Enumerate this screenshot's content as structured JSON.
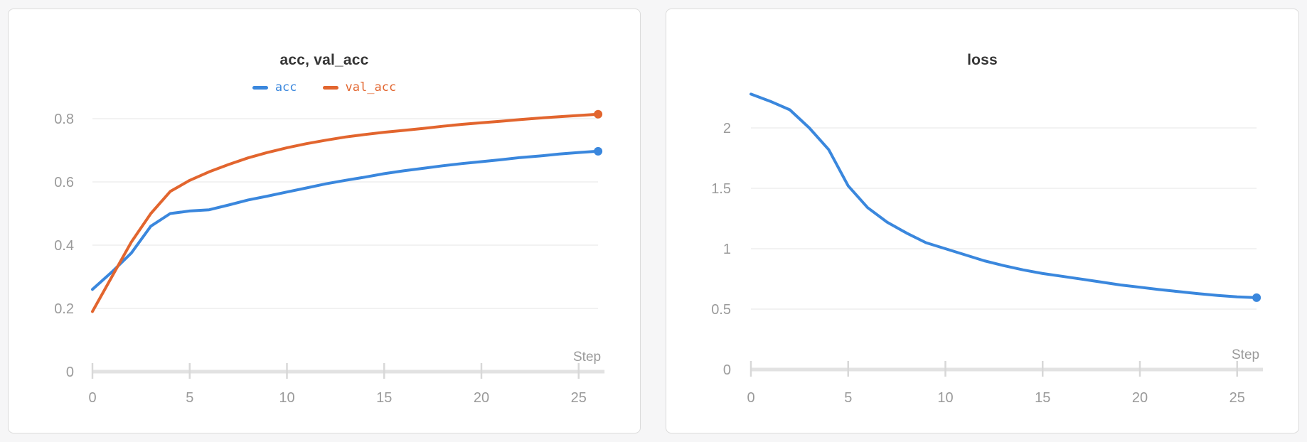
{
  "colors": {
    "page_background": "#f6f6f7",
    "card_background": "#ffffff",
    "card_border": "#dbdbdb",
    "title_text": "#363636",
    "tick_label": "#9a9a9a",
    "gridline": "#ededed",
    "axis_line": "#e2e2e2",
    "tick_mark": "#d8d8d8",
    "series_blue": "#3a87dd",
    "series_orange": "#e2652e"
  },
  "chart_data": [
    {
      "type": "line",
      "title": "acc, val_acc",
      "xlabel": "Step",
      "grid": true,
      "legend_position": "top-center",
      "xlim": [
        0,
        26
      ],
      "ylim": [
        0,
        0.9
      ],
      "x_ticks": [
        0,
        5,
        10,
        15,
        20,
        25
      ],
      "y_ticks": [
        0,
        0.2,
        0.4,
        0.6,
        0.8
      ],
      "x": [
        0,
        1,
        2,
        3,
        4,
        5,
        6,
        7,
        8,
        9,
        10,
        11,
        12,
        13,
        14,
        15,
        16,
        17,
        18,
        19,
        20,
        21,
        22,
        23,
        24,
        25,
        26
      ],
      "series": [
        {
          "name": "acc",
          "color": "#3a87dd",
          "values": [
            0.26,
            0.315,
            0.375,
            0.46,
            0.5,
            0.508,
            0.512,
            0.527,
            0.543,
            0.555,
            0.568,
            0.581,
            0.594,
            0.605,
            0.615,
            0.626,
            0.635,
            0.643,
            0.651,
            0.658,
            0.664,
            0.67,
            0.677,
            0.682,
            0.688,
            0.693,
            0.697
          ]
        },
        {
          "name": "val_acc",
          "color": "#e2652e",
          "values": [
            0.19,
            0.3,
            0.41,
            0.5,
            0.57,
            0.605,
            0.632,
            0.655,
            0.676,
            0.693,
            0.708,
            0.721,
            0.732,
            0.742,
            0.75,
            0.757,
            0.763,
            0.769,
            0.776,
            0.782,
            0.787,
            0.792,
            0.797,
            0.802,
            0.806,
            0.81,
            0.814
          ]
        }
      ],
      "end_point_marker": true
    },
    {
      "type": "line",
      "title": "loss",
      "xlabel": "Step",
      "grid": true,
      "legend_position": "none",
      "xlim": [
        0,
        26
      ],
      "ylim": [
        0,
        2.4
      ],
      "x_ticks": [
        0,
        5,
        10,
        15,
        20,
        25
      ],
      "y_ticks": [
        0,
        0.5,
        1,
        1.5,
        2
      ],
      "x": [
        0,
        1,
        2,
        3,
        4,
        5,
        6,
        7,
        8,
        9,
        10,
        11,
        12,
        13,
        14,
        15,
        16,
        17,
        18,
        19,
        20,
        21,
        22,
        23,
        24,
        25,
        26
      ],
      "series": [
        {
          "name": "loss",
          "color": "#3a87dd",
          "values": [
            2.28,
            2.22,
            2.15,
            2.0,
            1.82,
            1.52,
            1.34,
            1.22,
            1.13,
            1.05,
            1.0,
            0.95,
            0.9,
            0.86,
            0.825,
            0.795,
            0.772,
            0.748,
            0.724,
            0.7,
            0.681,
            0.662,
            0.645,
            0.628,
            0.613,
            0.601,
            0.595
          ]
        }
      ],
      "end_point_marker": true
    }
  ]
}
